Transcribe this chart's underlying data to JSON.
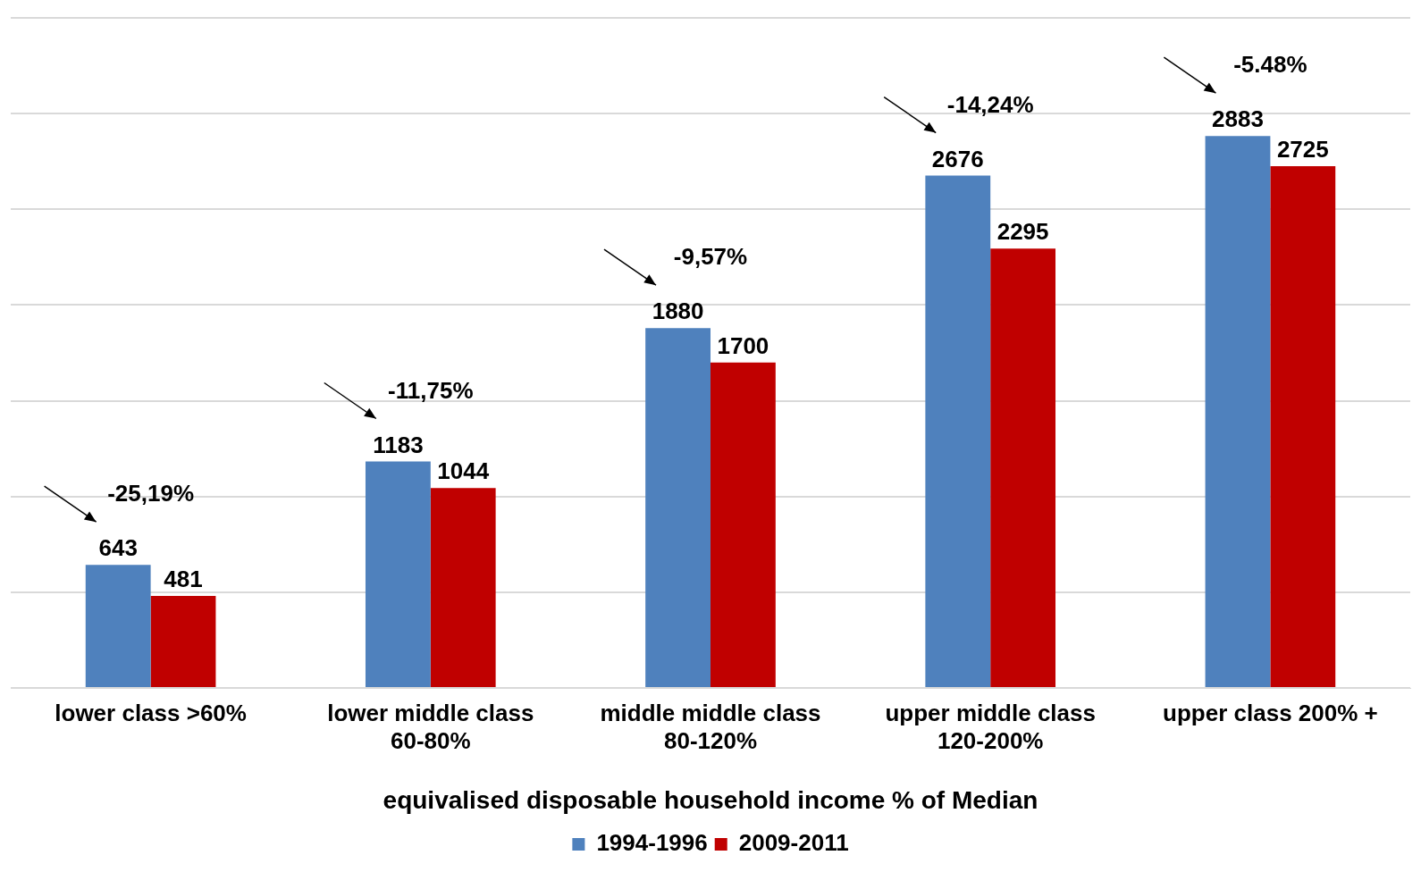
{
  "chart_data": {
    "type": "bar",
    "xlabel": "equivalised disposable household income % of Median",
    "categories": [
      "lower class >60%",
      "lower middle class 60-80%",
      "middle middle class 80-120%",
      "upper middle class 120-200%",
      "upper class 200% +"
    ],
    "series": [
      {
        "name": "1994-1996",
        "color": "#4f81bd",
        "values": [
          643,
          1183,
          1880,
          2676,
          2883
        ]
      },
      {
        "name": "2009-2011",
        "color": "#c00000",
        "values": [
          481,
          1044,
          1700,
          2295,
          2725
        ]
      }
    ],
    "ylim": [
      0,
      3500
    ],
    "yticks": [
      {
        "value": 0,
        "label": null
      },
      {
        "value": 500,
        "label": null
      },
      {
        "value": 1000,
        "label": null
      },
      {
        "value": 1500,
        "label": null
      },
      {
        "value": 2000,
        "label": null
      },
      {
        "value": 2500,
        "label": null
      },
      {
        "value": 3000,
        "label": null
      },
      {
        "value": 3500,
        "label": null
      }
    ],
    "tick_labels": "x",
    "grid": "y",
    "legend": "bottom",
    "data_labels": true,
    "annotations": [
      "-25,19%",
      "-11,75%",
      "-9,57%",
      "-14,24%",
      "-5.48%"
    ]
  }
}
